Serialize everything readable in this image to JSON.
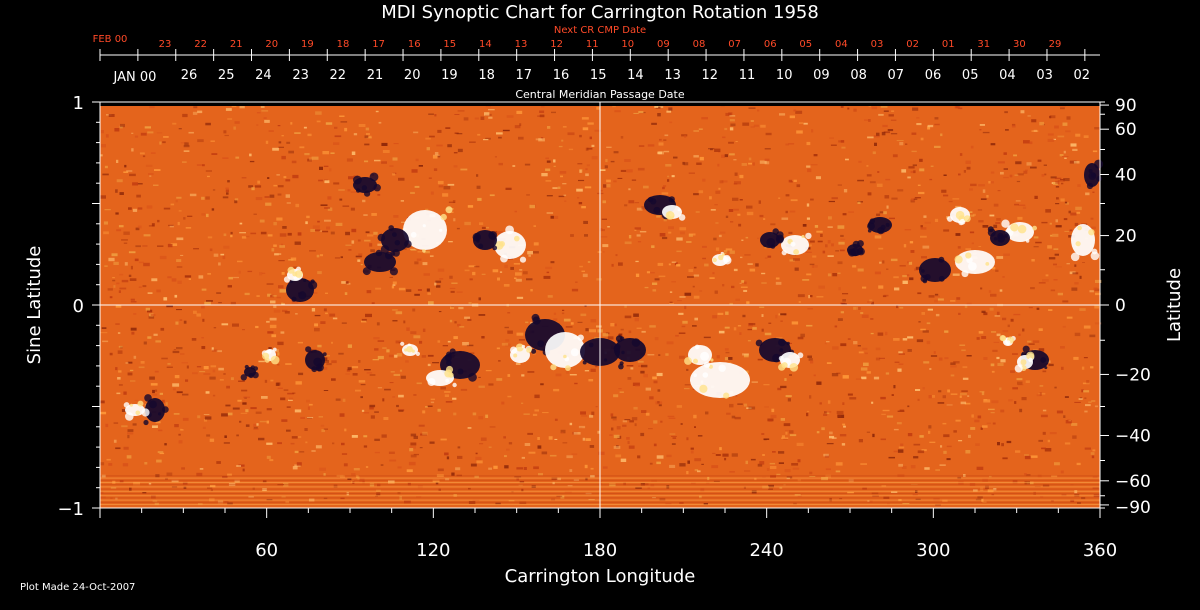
{
  "chart_data": {
    "type": "heatmap",
    "title": "MDI Synoptic Chart for Carrington Rotation 1958",
    "xlabel": "Carrington Longitude",
    "ylabel_left": "Sine Latitude",
    "ylabel_right": "Latitude",
    "xlim": [
      0,
      360
    ],
    "ylim": [
      -1,
      1
    ],
    "x_ticks": [
      60,
      120,
      180,
      240,
      300,
      360
    ],
    "y_left_ticks": [
      {
        "value": 1,
        "label": "1"
      },
      {
        "value": 0,
        "label": "0"
      },
      {
        "value": -1,
        "label": "−1"
      }
    ],
    "y_right_ticks": [
      90,
      60,
      40,
      20,
      0,
      -20,
      -40,
      -60,
      -90
    ],
    "y_right_tick_labels": [
      "90",
      "60",
      "40",
      "20",
      "0",
      "−20",
      "−40",
      "−60",
      "−90"
    ],
    "next_cr_label": "Next CR CMP Date",
    "next_cr_month": "FEB 00",
    "next_cr_dates": [
      "23",
      "22",
      "21",
      "20",
      "19",
      "18",
      "17",
      "16",
      "15",
      "14",
      "13",
      "12",
      "11",
      "10",
      "09",
      "08",
      "07",
      "06",
      "05",
      "04",
      "03",
      "02",
      "01",
      "31",
      "30",
      "29"
    ],
    "cmp_label": "Central Meridian Passage Date",
    "cmp_month": "JAN 00",
    "cmp_dates": [
      "26",
      "25",
      "24",
      "23",
      "22",
      "21",
      "20",
      "19",
      "18",
      "17",
      "16",
      "15",
      "14",
      "13",
      "12",
      "11",
      "10",
      "09",
      "08",
      "07",
      "06",
      "05",
      "04",
      "03",
      "02"
    ],
    "footer": "Plot Made 24-Oct-2007",
    "colors": {
      "field": "#e4641c",
      "positive": "#ffffff",
      "negative": "#14082e",
      "grid": "#ffffff",
      "next_cr_text": "#ff4a28"
    }
  }
}
